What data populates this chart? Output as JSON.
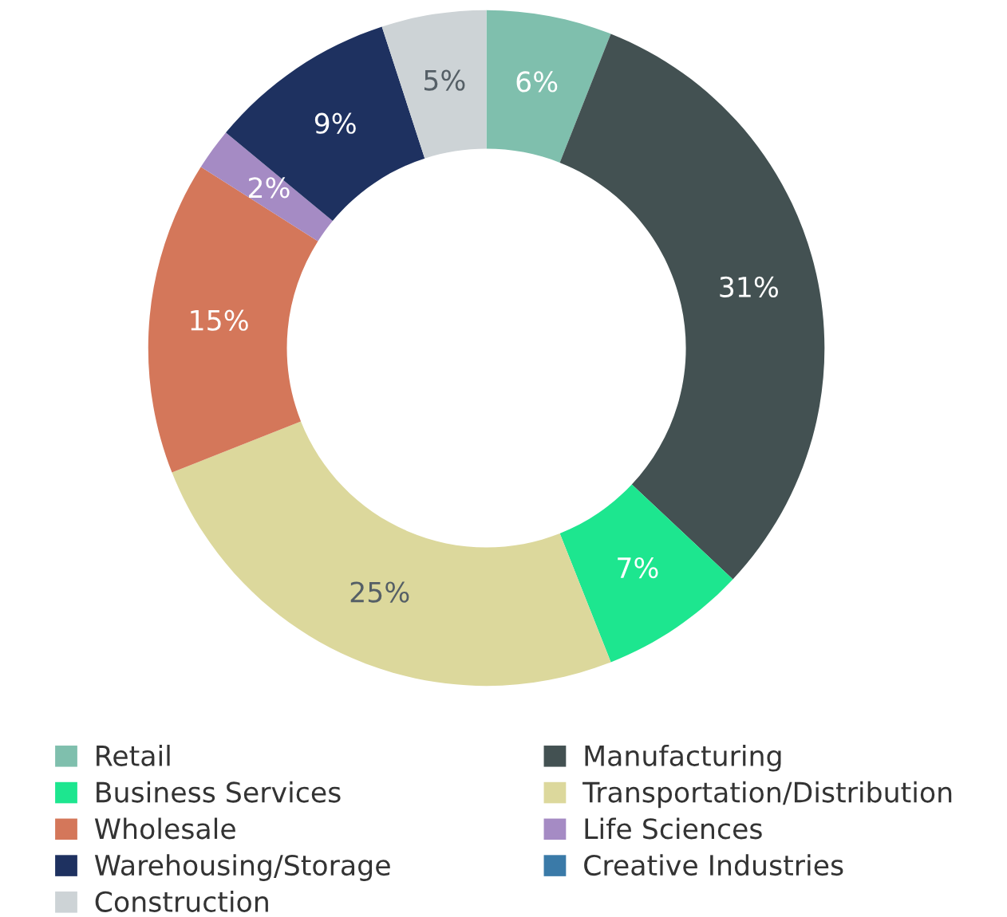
{
  "chart_data": {
    "type": "donut",
    "categories": [
      "Retail",
      "Manufacturing",
      "Business Services",
      "Transportation/Distribution",
      "Wholesale",
      "Life Sciences",
      "Warehousing/Storage",
      "Creative Industries",
      "Construction"
    ],
    "values": [
      6,
      31,
      7,
      25,
      15,
      2,
      9,
      0,
      5
    ],
    "colors": [
      "#7fbfad",
      "#435152",
      "#1de68f",
      "#dcd89c",
      "#d4775a",
      "#a58bc4",
      "#1e3160",
      "#3a7aa8",
      "#cdd3d6"
    ],
    "value_labels": [
      "6%",
      "31%",
      "7%",
      "25%",
      "15%",
      "2%",
      "9%",
      null,
      "5%"
    ],
    "legend": "bottom"
  }
}
